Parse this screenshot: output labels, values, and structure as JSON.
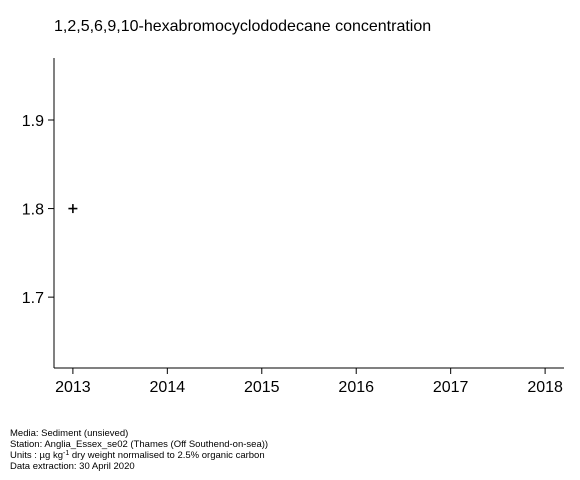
{
  "chart_data": {
    "type": "scatter",
    "title": "1,2,5,6,9,10-hexabromocyclododecane concentration",
    "xlabel": "",
    "ylabel": "",
    "xlim": [
      2012.8,
      2018.2
    ],
    "ylim": [
      1.62,
      1.97
    ],
    "x_ticks": [
      2013,
      2014,
      2015,
      2016,
      2017,
      2018
    ],
    "x_tick_labels": [
      "2013",
      "2014",
      "2015",
      "2016",
      "2017",
      "2018"
    ],
    "y_ticks": [
      1.7,
      1.8,
      1.9
    ],
    "y_tick_labels": [
      "1.7",
      "1.8",
      "1.9"
    ],
    "marker": "plus",
    "grid": false,
    "points": [
      {
        "x": 2013,
        "y": 1.8
      }
    ]
  },
  "footer": {
    "media": "Media: Sediment (unsieved)",
    "station": "Station: Anglia_Essex_se02 (Thames (Off Southend-on-sea))",
    "units_prefix": "Units : µg kg",
    "units_sup": "-1",
    "units_suffix": " dry weight normalised to 2.5% organic carbon",
    "extraction": "Data extraction: 30 April 2020"
  }
}
